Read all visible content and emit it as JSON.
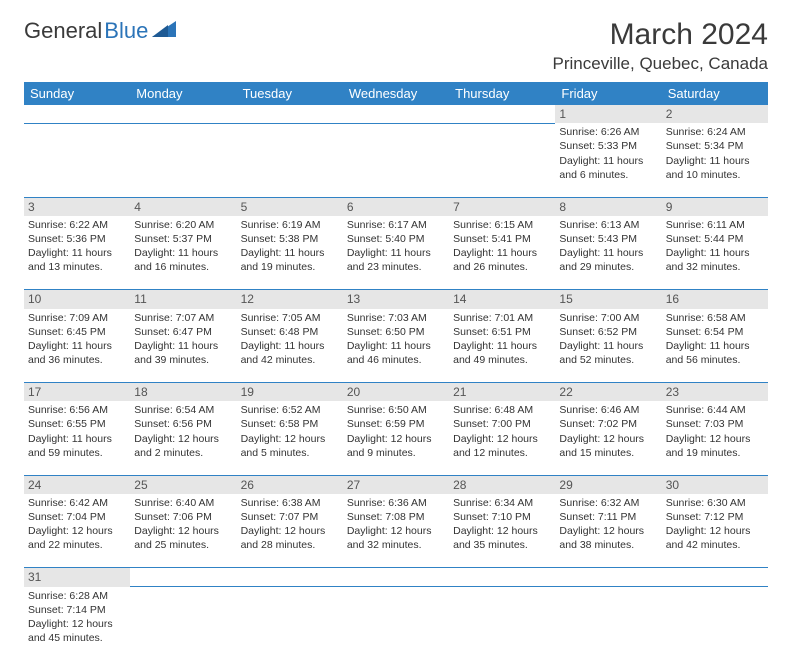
{
  "logo": {
    "text1": "General",
    "text2": "Blue"
  },
  "title": "March 2024",
  "location": "Princeville, Quebec, Canada",
  "colors": {
    "header_bg": "#3082c5",
    "header_text": "#ffffff",
    "daynum_bg": "#e6e6e6",
    "border": "#3082c5",
    "text": "#333333",
    "logo_gray": "#3a3a3a",
    "logo_blue": "#2b74b8"
  },
  "day_headers": [
    "Sunday",
    "Monday",
    "Tuesday",
    "Wednesday",
    "Thursday",
    "Friday",
    "Saturday"
  ],
  "weeks": [
    [
      null,
      null,
      null,
      null,
      null,
      {
        "n": "1",
        "sunrise": "6:26 AM",
        "sunset": "5:33 PM",
        "daylight": "11 hours and 6 minutes."
      },
      {
        "n": "2",
        "sunrise": "6:24 AM",
        "sunset": "5:34 PM",
        "daylight": "11 hours and 10 minutes."
      }
    ],
    [
      {
        "n": "3",
        "sunrise": "6:22 AM",
        "sunset": "5:36 PM",
        "daylight": "11 hours and 13 minutes."
      },
      {
        "n": "4",
        "sunrise": "6:20 AM",
        "sunset": "5:37 PM",
        "daylight": "11 hours and 16 minutes."
      },
      {
        "n": "5",
        "sunrise": "6:19 AM",
        "sunset": "5:38 PM",
        "daylight": "11 hours and 19 minutes."
      },
      {
        "n": "6",
        "sunrise": "6:17 AM",
        "sunset": "5:40 PM",
        "daylight": "11 hours and 23 minutes."
      },
      {
        "n": "7",
        "sunrise": "6:15 AM",
        "sunset": "5:41 PM",
        "daylight": "11 hours and 26 minutes."
      },
      {
        "n": "8",
        "sunrise": "6:13 AM",
        "sunset": "5:43 PM",
        "daylight": "11 hours and 29 minutes."
      },
      {
        "n": "9",
        "sunrise": "6:11 AM",
        "sunset": "5:44 PM",
        "daylight": "11 hours and 32 minutes."
      }
    ],
    [
      {
        "n": "10",
        "sunrise": "7:09 AM",
        "sunset": "6:45 PM",
        "daylight": "11 hours and 36 minutes."
      },
      {
        "n": "11",
        "sunrise": "7:07 AM",
        "sunset": "6:47 PM",
        "daylight": "11 hours and 39 minutes."
      },
      {
        "n": "12",
        "sunrise": "7:05 AM",
        "sunset": "6:48 PM",
        "daylight": "11 hours and 42 minutes."
      },
      {
        "n": "13",
        "sunrise": "7:03 AM",
        "sunset": "6:50 PM",
        "daylight": "11 hours and 46 minutes."
      },
      {
        "n": "14",
        "sunrise": "7:01 AM",
        "sunset": "6:51 PM",
        "daylight": "11 hours and 49 minutes."
      },
      {
        "n": "15",
        "sunrise": "7:00 AM",
        "sunset": "6:52 PM",
        "daylight": "11 hours and 52 minutes."
      },
      {
        "n": "16",
        "sunrise": "6:58 AM",
        "sunset": "6:54 PM",
        "daylight": "11 hours and 56 minutes."
      }
    ],
    [
      {
        "n": "17",
        "sunrise": "6:56 AM",
        "sunset": "6:55 PM",
        "daylight": "11 hours and 59 minutes."
      },
      {
        "n": "18",
        "sunrise": "6:54 AM",
        "sunset": "6:56 PM",
        "daylight": "12 hours and 2 minutes."
      },
      {
        "n": "19",
        "sunrise": "6:52 AM",
        "sunset": "6:58 PM",
        "daylight": "12 hours and 5 minutes."
      },
      {
        "n": "20",
        "sunrise": "6:50 AM",
        "sunset": "6:59 PM",
        "daylight": "12 hours and 9 minutes."
      },
      {
        "n": "21",
        "sunrise": "6:48 AM",
        "sunset": "7:00 PM",
        "daylight": "12 hours and 12 minutes."
      },
      {
        "n": "22",
        "sunrise": "6:46 AM",
        "sunset": "7:02 PM",
        "daylight": "12 hours and 15 minutes."
      },
      {
        "n": "23",
        "sunrise": "6:44 AM",
        "sunset": "7:03 PM",
        "daylight": "12 hours and 19 minutes."
      }
    ],
    [
      {
        "n": "24",
        "sunrise": "6:42 AM",
        "sunset": "7:04 PM",
        "daylight": "12 hours and 22 minutes."
      },
      {
        "n": "25",
        "sunrise": "6:40 AM",
        "sunset": "7:06 PM",
        "daylight": "12 hours and 25 minutes."
      },
      {
        "n": "26",
        "sunrise": "6:38 AM",
        "sunset": "7:07 PM",
        "daylight": "12 hours and 28 minutes."
      },
      {
        "n": "27",
        "sunrise": "6:36 AM",
        "sunset": "7:08 PM",
        "daylight": "12 hours and 32 minutes."
      },
      {
        "n": "28",
        "sunrise": "6:34 AM",
        "sunset": "7:10 PM",
        "daylight": "12 hours and 35 minutes."
      },
      {
        "n": "29",
        "sunrise": "6:32 AM",
        "sunset": "7:11 PM",
        "daylight": "12 hours and 38 minutes."
      },
      {
        "n": "30",
        "sunrise": "6:30 AM",
        "sunset": "7:12 PM",
        "daylight": "12 hours and 42 minutes."
      }
    ],
    [
      {
        "n": "31",
        "sunrise": "6:28 AM",
        "sunset": "7:14 PM",
        "daylight": "12 hours and 45 minutes."
      },
      null,
      null,
      null,
      null,
      null,
      null
    ]
  ],
  "labels": {
    "sunrise": "Sunrise: ",
    "sunset": "Sunset: ",
    "daylight": "Daylight: "
  }
}
